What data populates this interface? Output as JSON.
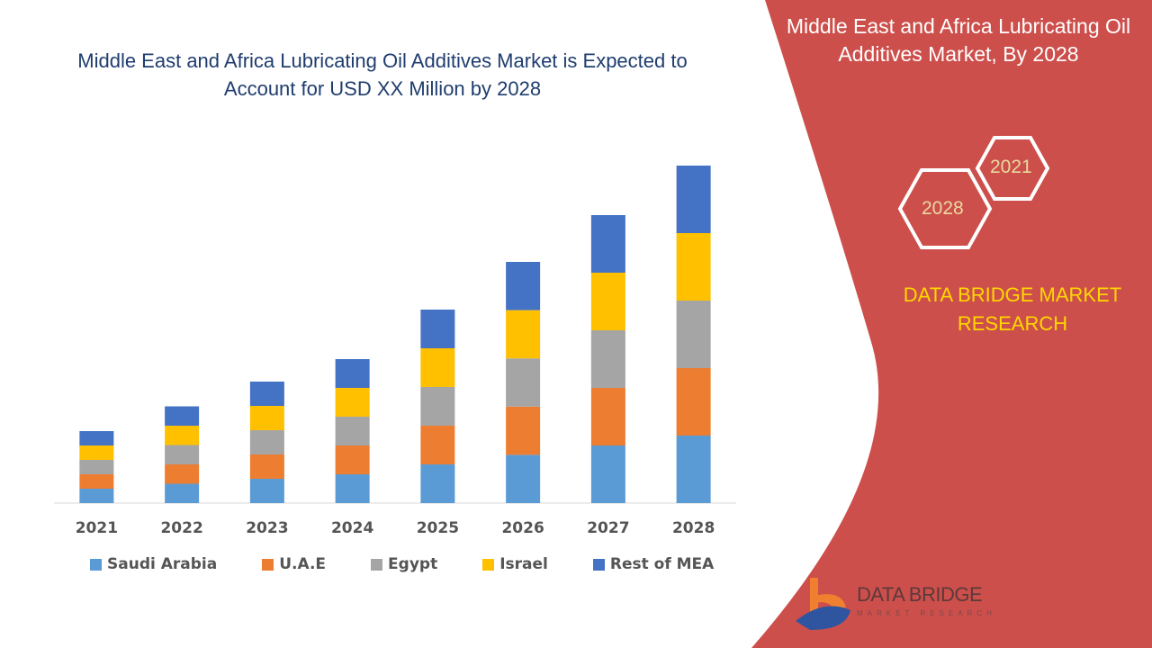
{
  "chart_data": {
    "type": "bar",
    "stacked": true,
    "title": "Middle East and Africa Lubricating Oil Additives Market is Expected to Account for USD XX Million by 2028",
    "categories": [
      "2021",
      "2022",
      "2023",
      "2024",
      "2025",
      "2026",
      "2027",
      "2028"
    ],
    "series": [
      {
        "name": "Saudi Arabia",
        "color": "#5b9bd5",
        "values": [
          16,
          21.5,
          27,
          32,
          43,
          53.6,
          64,
          75
        ]
      },
      {
        "name": "U.A.E",
        "color": "#ed7d31",
        "values": [
          16,
          21.5,
          27,
          32,
          43,
          53.6,
          64,
          75
        ]
      },
      {
        "name": "Egypt",
        "color": "#a5a5a5",
        "values": [
          16,
          21.5,
          27,
          32,
          43,
          53.6,
          64,
          75
        ]
      },
      {
        "name": "Israel",
        "color": "#ffc000",
        "values": [
          16,
          21.5,
          27,
          32,
          43,
          53.6,
          64,
          75
        ]
      },
      {
        "name": "Rest of MEA",
        "color": "#4472c4",
        "values": [
          16,
          21.5,
          27,
          32,
          43,
          53.6,
          64,
          75
        ]
      }
    ],
    "ylim": [
      0,
      400
    ],
    "grid": false,
    "legend": "bottom"
  },
  "side": {
    "title": "Middle East and Africa Lubricating Oil Additives Market, By 2028",
    "hex1": "2021",
    "hex2": "2028",
    "brand": "DATA BRIDGE MARKET RESEARCH",
    "panel_color": "#cd4f4b",
    "logo_text": "DATA BRIDGE",
    "logo_sub": "MARKET RESEARCH"
  }
}
